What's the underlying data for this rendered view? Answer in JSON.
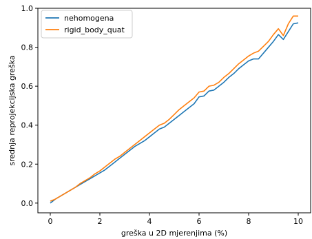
{
  "chart_data": {
    "type": "line",
    "xlabel": "greška u 2D mjerenjima (%)",
    "ylabel": "srednja reprojekcijska greška",
    "xlim": [
      -0.5,
      10.5
    ],
    "ylim": [
      -0.05,
      1.0
    ],
    "xticks": [
      0,
      2,
      4,
      6,
      8,
      10
    ],
    "xtick_labels": [
      "0",
      "2",
      "4",
      "6",
      "8",
      "10"
    ],
    "yticks": [
      0.0,
      0.2,
      0.4,
      0.6,
      0.8,
      1.0
    ],
    "ytick_labels": [
      "0.0",
      "0.2",
      "0.4",
      "0.6",
      "0.8",
      "1.0"
    ],
    "grid": false,
    "legend_position": "top-left",
    "series": [
      {
        "name": "nehomogena",
        "color": "#1f77b4",
        "x": [
          0,
          0.2,
          0.4,
          0.6,
          0.8,
          1.0,
          1.2,
          1.4,
          1.6,
          1.8,
          2.0,
          2.2,
          2.4,
          2.6,
          2.8,
          3.0,
          3.2,
          3.4,
          3.6,
          3.8,
          4.0,
          4.2,
          4.4,
          4.6,
          4.8,
          5.0,
          5.2,
          5.4,
          5.6,
          5.8,
          6.0,
          6.2,
          6.4,
          6.6,
          6.8,
          7.0,
          7.2,
          7.4,
          7.6,
          7.8,
          8.0,
          8.2,
          8.4,
          8.6,
          8.8,
          9.0,
          9.2,
          9.4,
          9.6,
          9.8,
          10.0
        ],
        "y": [
          0.0,
          0.02,
          0.035,
          0.05,
          0.065,
          0.08,
          0.095,
          0.11,
          0.125,
          0.14,
          0.155,
          0.17,
          0.19,
          0.21,
          0.23,
          0.25,
          0.27,
          0.29,
          0.305,
          0.32,
          0.34,
          0.36,
          0.38,
          0.39,
          0.41,
          0.43,
          0.45,
          0.47,
          0.49,
          0.51,
          0.545,
          0.55,
          0.575,
          0.58,
          0.6,
          0.62,
          0.645,
          0.665,
          0.69,
          0.71,
          0.73,
          0.74,
          0.74,
          0.77,
          0.8,
          0.83,
          0.865,
          0.84,
          0.88,
          0.92,
          0.925
        ]
      },
      {
        "name": "rigid_body_quat",
        "color": "#ff7f0e",
        "x": [
          0,
          0.2,
          0.4,
          0.6,
          0.8,
          1.0,
          1.2,
          1.4,
          1.6,
          1.8,
          2.0,
          2.2,
          2.4,
          2.6,
          2.8,
          3.0,
          3.2,
          3.4,
          3.6,
          3.8,
          4.0,
          4.2,
          4.4,
          4.6,
          4.8,
          5.0,
          5.2,
          5.4,
          5.6,
          5.8,
          6.0,
          6.2,
          6.4,
          6.6,
          6.8,
          7.0,
          7.2,
          7.4,
          7.6,
          7.8,
          8.0,
          8.2,
          8.4,
          8.6,
          8.8,
          9.0,
          9.2,
          9.4,
          9.6,
          9.8,
          10.0
        ],
        "y": [
          0.01,
          0.02,
          0.035,
          0.05,
          0.065,
          0.08,
          0.1,
          0.115,
          0.13,
          0.15,
          0.165,
          0.185,
          0.205,
          0.225,
          0.24,
          0.26,
          0.28,
          0.3,
          0.32,
          0.34,
          0.36,
          0.38,
          0.4,
          0.41,
          0.43,
          0.455,
          0.48,
          0.5,
          0.52,
          0.54,
          0.57,
          0.575,
          0.6,
          0.605,
          0.62,
          0.645,
          0.665,
          0.69,
          0.715,
          0.735,
          0.755,
          0.77,
          0.78,
          0.805,
          0.83,
          0.865,
          0.895,
          0.86,
          0.92,
          0.96,
          0.96
        ]
      }
    ]
  }
}
